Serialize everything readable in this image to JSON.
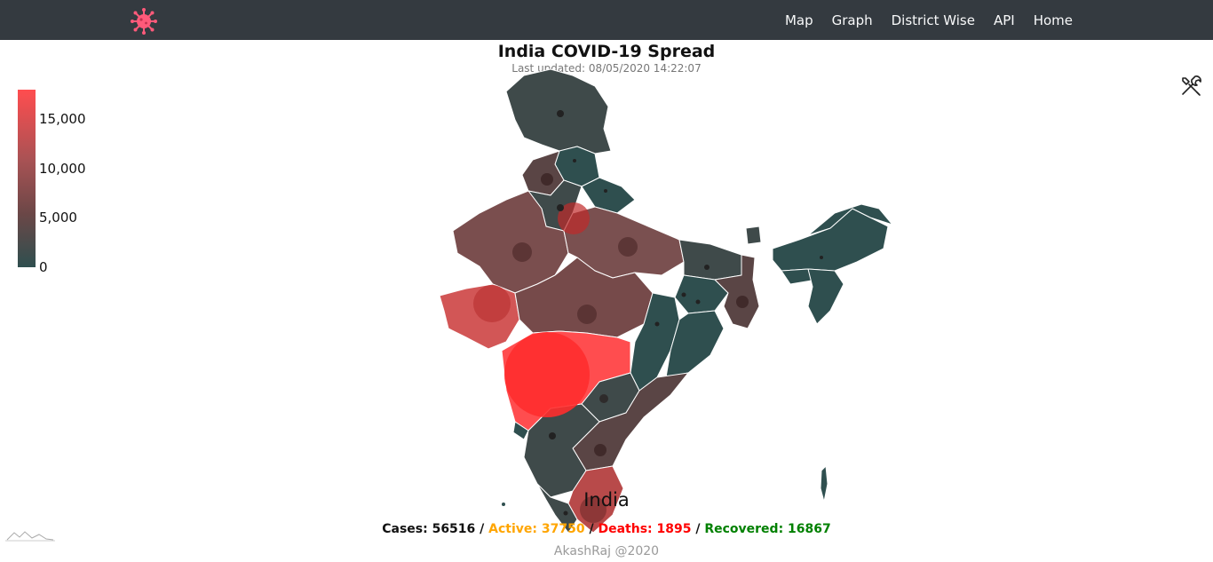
{
  "nav": {
    "logo": "virus-icon",
    "links": [
      "Map",
      "Graph",
      "District Wise",
      "API",
      "Home"
    ]
  },
  "header": {
    "title": "India COVID-19 Spread",
    "last_updated": "Last updated: 08/05/2020 14:22:07"
  },
  "legend": {
    "ticks": [
      "15,000",
      "10,000",
      "5,000",
      "0"
    ],
    "color_high": "#ff4d4f",
    "color_low": "#2f4f4f"
  },
  "region": {
    "name": "India"
  },
  "stats": {
    "cases": "Cases: 56516",
    "active": "Active: 37750",
    "deaths": "Deaths: 1895",
    "recovered": "Recovered: 16867",
    "sep": " / "
  },
  "footer": {
    "credit": "AkashRaj @2020"
  },
  "colors": {
    "navbar": "#343a40",
    "low": "#2f4f4f",
    "mid": "#6b4747",
    "high": "#ff4d4f"
  }
}
